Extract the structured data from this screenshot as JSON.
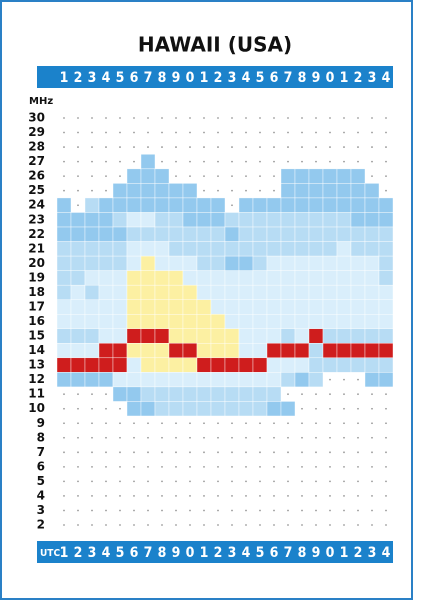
{
  "title": "HAWAII (USA)",
  "unit": "MHz",
  "utc_label": "UTC",
  "hours": [
    "1",
    "2",
    "3",
    "4",
    "5",
    "6",
    "7",
    "8",
    "9",
    "0",
    "1",
    "2",
    "3",
    "4",
    "5",
    "6",
    "7",
    "8",
    "9",
    "0",
    "1",
    "2",
    "3",
    "4"
  ],
  "palette": [
    "#9a9a9a",
    "#d9eefb",
    "#b7dcf4",
    "#93c9ee",
    "#fcf0a2",
    "#cf1d1d"
  ],
  "rows": [
    {
      "mhz": "30",
      "cells": "000000000000000000000000"
    },
    {
      "mhz": "29",
      "cells": "000000000000000000000000"
    },
    {
      "mhz": "28",
      "cells": "000000000000000000000000"
    },
    {
      "mhz": "27",
      "cells": "000000300000000000000000"
    },
    {
      "mhz": "26",
      "cells": "000003330000000033333300"
    },
    {
      "mhz": "25",
      "cells": "000033333300000033333330"
    },
    {
      "mhz": "24",
      "cells": "302333333333033333333333"
    },
    {
      "mhz": "23",
      "cells": "333321122333222222222333"
    },
    {
      "mhz": "22",
      "cells": "333332222222322222222222"
    },
    {
      "mhz": "21",
      "cells": "222221112222222222221222"
    },
    {
      "mhz": "20",
      "cells": "222221411122332111111112"
    },
    {
      "mhz": "19",
      "cells": "221114444111111111111112"
    },
    {
      "mhz": "18",
      "cells": "212114444411111111111111"
    },
    {
      "mhz": "17",
      "cells": "111114444441111111111111"
    },
    {
      "mhz": "16",
      "cells": "111114444444111111111111"
    },
    {
      "mhz": "15",
      "cells": "222115554444411121522222"
    },
    {
      "mhz": "14",
      "cells": "111554445544411555255555"
    },
    {
      "mhz": "13",
      "cells": "555551444455555111222222"
    },
    {
      "mhz": "12",
      "cells": "333311111111111123200033"
    },
    {
      "mhz": "11",
      "cells": "000033222222222200000000"
    },
    {
      "mhz": "10",
      "cells": "000003322222222330000000"
    },
    {
      "mhz": "9",
      "cells": "000000000000000000000000"
    },
    {
      "mhz": "8",
      "cells": "000000000000000000000000"
    },
    {
      "mhz": "7",
      "cells": "000000000000000000000000"
    },
    {
      "mhz": "6",
      "cells": "000000000000000000000000"
    },
    {
      "mhz": "5",
      "cells": "000000000000000000000000"
    },
    {
      "mhz": "4",
      "cells": "000000000000000000000000"
    },
    {
      "mhz": "3",
      "cells": "000000000000000000000000"
    },
    {
      "mhz": "2",
      "cells": "000000000000000000000000"
    }
  ]
}
